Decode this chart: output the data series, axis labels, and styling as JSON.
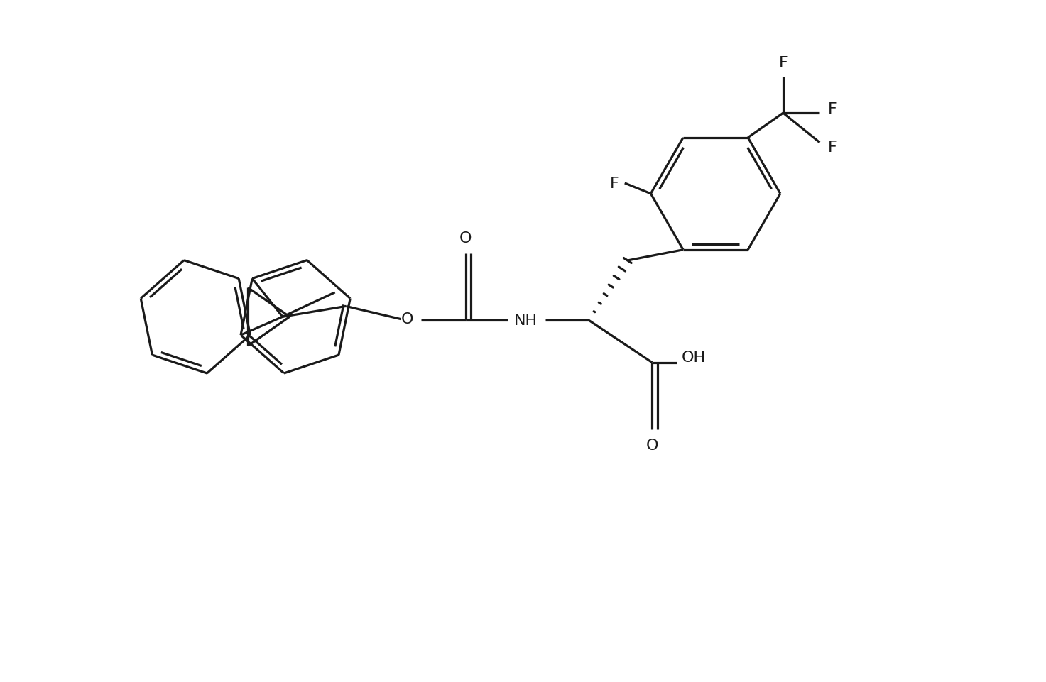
{
  "bg": "#ffffff",
  "lc": "#1a1a1a",
  "lw": 2.3,
  "fs": 16,
  "figsize": [
    14.73,
    9.62
  ],
  "dpi": 100,
  "xlim": [
    0,
    14.73
  ],
  "ylim": [
    0,
    9.62
  ]
}
